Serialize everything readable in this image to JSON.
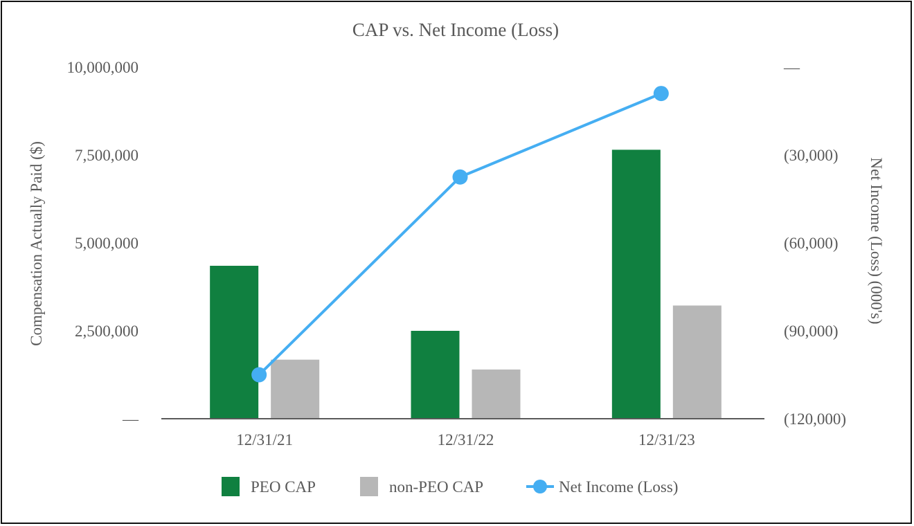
{
  "chart_data": {
    "type": "bar",
    "title": "CAP vs. Net Income (Loss)",
    "categories": [
      "12/31/21",
      "12/31/22",
      "12/31/23"
    ],
    "series": [
      {
        "name": "PEO CAP",
        "type": "bar",
        "axis": "left",
        "color": "#108040",
        "values": [
          4350000,
          2500000,
          7650000
        ]
      },
      {
        "name": "non-PEO CAP",
        "type": "bar",
        "axis": "left",
        "color": "#b7b7b7",
        "values": [
          1680000,
          1400000,
          3220000
        ]
      },
      {
        "name": "Net Income (Loss)",
        "type": "line",
        "axis": "right",
        "color": "#45aef2",
        "values": [
          -105000,
          -37500,
          -9000
        ]
      }
    ],
    "ylabel": "Compensation Actually Paid ($)",
    "ylim": [
      0,
      10000000
    ],
    "yticks": [
      0,
      2500000,
      5000000,
      7500000,
      10000000
    ],
    "ytick_labels": [
      "—",
      "2,500,000",
      "5,000,000",
      "7,500,000",
      "10,000,000"
    ],
    "y2label": "Net Income (Loss) (000's)",
    "y2lim": [
      -120000,
      0
    ],
    "y2ticks": [
      -120000,
      -90000,
      -60000,
      -30000,
      0
    ],
    "y2tick_labels": [
      "(120,000)",
      "(90,000)",
      "(60,000)",
      "(30,000)",
      "—"
    ],
    "grid": false,
    "legend_position": "bottom"
  }
}
